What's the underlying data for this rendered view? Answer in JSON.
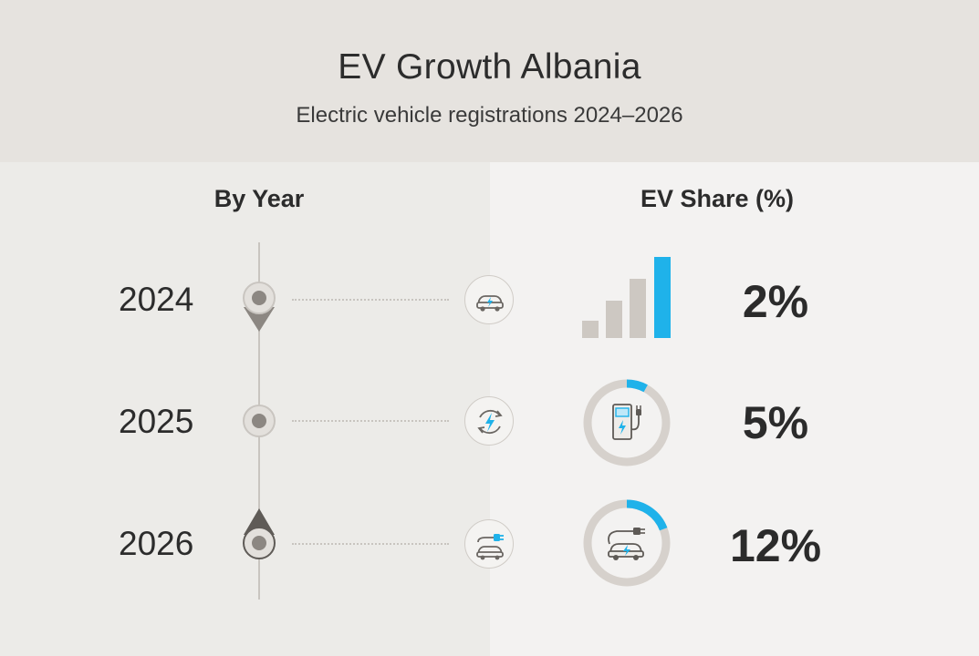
{
  "header": {
    "title": "EV Growth Albania",
    "subtitle": "Electric vehicle registrations 2024–2026"
  },
  "columns": {
    "left_label": "By Year",
    "right_label": "EV Share (%)"
  },
  "chart_data": {
    "type": "table",
    "title": "EV Growth Albania",
    "subtitle": "Electric vehicle registrations 2024–2026",
    "categories": [
      "2024",
      "2025",
      "2026"
    ],
    "series": [
      {
        "name": "EV Share (%)",
        "values": [
          2,
          5,
          12
        ]
      }
    ],
    "rows": [
      {
        "year": "2024",
        "share_label": "2%",
        "share": 2,
        "row_icon": "electric-car-icon",
        "visual": "signal-bars-icon"
      },
      {
        "year": "2025",
        "share_label": "5%",
        "share": 5,
        "row_icon": "charging-cycle-icon",
        "visual": "charging-station-icon"
      },
      {
        "year": "2026",
        "share_label": "12%",
        "share": 12,
        "row_icon": "plug-in-car-icon",
        "visual": "plug-car-icon"
      }
    ]
  },
  "colors": {
    "accent": "#1fb2ea",
    "neutral": "#cdc8c2",
    "marker": "#8c8782",
    "text": "#2b2b2b"
  }
}
